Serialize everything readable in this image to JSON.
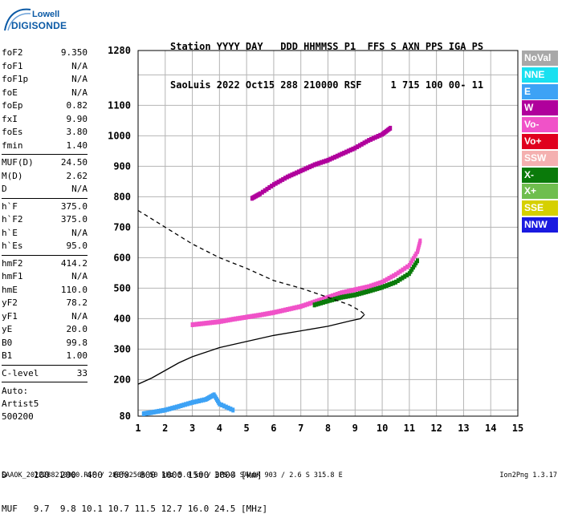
{
  "logo": {
    "line1": "Lowell",
    "line2": "DIGISONDE"
  },
  "header": {
    "row1": "Station YYYY DAY   DDD HHMMSS P1  FFS S AXN PPS IGA PS",
    "row2": "SaoLuis 2022 Oct15 288 210000 RSF     1 715 100 00- 11"
  },
  "params": [
    {
      "name": "foF2",
      "value": "9.350"
    },
    {
      "name": "foF1",
      "value": "N/A"
    },
    {
      "name": "foF1p",
      "value": "N/A"
    },
    {
      "name": "foE",
      "value": "N/A"
    },
    {
      "name": "foEp",
      "value": "0.82"
    },
    {
      "name": "fxI",
      "value": "9.90"
    },
    {
      "name": "foEs",
      "value": "3.80"
    },
    {
      "name": "fmin",
      "value": "1.40",
      "sep_after": true
    },
    {
      "name": "MUF(D)",
      "value": "24.50"
    },
    {
      "name": "M(D)",
      "value": "2.62"
    },
    {
      "name": "D",
      "value": "N/A",
      "sep_after": true
    },
    {
      "name": "h`F",
      "value": "375.0"
    },
    {
      "name": "h`F2",
      "value": "375.0"
    },
    {
      "name": "h`E",
      "value": "N/A"
    },
    {
      "name": "h`Es",
      "value": "95.0",
      "sep_after": true
    },
    {
      "name": "hmF2",
      "value": "414.2"
    },
    {
      "name": "hmF1",
      "value": "N/A"
    },
    {
      "name": "hmE",
      "value": "110.0"
    },
    {
      "name": "yF2",
      "value": "78.2"
    },
    {
      "name": "yF1",
      "value": "N/A"
    },
    {
      "name": "yE",
      "value": "20.0"
    },
    {
      "name": "B0",
      "value": "99.8"
    },
    {
      "name": "B1",
      "value": "1.00",
      "sep_after": true
    },
    {
      "name": "C-level",
      "value": "33",
      "sep_after": true
    }
  ],
  "auto": {
    "line1": "Auto:",
    "line2": "Artist5",
    "line3": "500200"
  },
  "legend": [
    {
      "label": "NoVal",
      "color": "#a8a8a8"
    },
    {
      "label": "NNE",
      "color": "#19e0f0"
    },
    {
      "label": "E",
      "color": "#3da2f5"
    },
    {
      "label": "W",
      "color": "#b0009c"
    },
    {
      "label": "Vo-",
      "color": "#f052c8"
    },
    {
      "label": "Vo+",
      "color": "#e0001e"
    },
    {
      "label": "SSW",
      "color": "#f4b0b0"
    },
    {
      "label": "X-",
      "color": "#0a7a0a"
    },
    {
      "label": "X+",
      "color": "#6fbe4e"
    },
    {
      "label": "SSE",
      "color": "#d6d000"
    },
    {
      "label": "NNW",
      "color": "#1a1ae0"
    }
  ],
  "footer": {
    "table_row1": "D     100  200  400  600  800 1000 1500 3000 [km]",
    "table_row2": "MUF   9.7  9.8 10.1 10.7 11.5 12.7 16.0 24.5 [MHz]",
    "line": "SAAOK_2022288210000.RSF / 280fx256h 50 kHz 5.0 km / DPS-4 SAAOK 903 / 2.6 S 315.8 E",
    "version": "Ion2Png 1.3.17"
  },
  "chart_data": {
    "type": "scatter",
    "x_range": [
      1,
      15
    ],
    "y_range": [
      80,
      1280
    ],
    "x_ticks": [
      "1",
      "2",
      "3",
      "4",
      "5",
      "6",
      "7",
      "8",
      "9",
      "10",
      "11",
      "12",
      "13",
      "14",
      "15"
    ],
    "y_ticks": [
      {
        "v": 80,
        "label": "80"
      },
      {
        "v": 100,
        "label": ""
      },
      {
        "v": 200,
        "label": "200"
      },
      {
        "v": 300,
        "label": "300"
      },
      {
        "v": 400,
        "label": "400"
      },
      {
        "v": 500,
        "label": "500"
      },
      {
        "v": 600,
        "label": "600"
      },
      {
        "v": 700,
        "label": "700"
      },
      {
        "v": 800,
        "label": "800"
      },
      {
        "v": 900,
        "label": "900"
      },
      {
        "v": 1000,
        "label": "1000"
      },
      {
        "v": 1100,
        "label": "1100"
      },
      {
        "v": 1200,
        "label": ""
      },
      {
        "v": 1280,
        "label": "1280"
      }
    ],
    "grid": true,
    "series": [
      {
        "name": "O-trace F",
        "color": "#f052c8",
        "points": [
          [
            3.0,
            380
          ],
          [
            3.5,
            385
          ],
          [
            4.0,
            390
          ],
          [
            4.5,
            398
          ],
          [
            5.0,
            405
          ],
          [
            5.5,
            412
          ],
          [
            6.0,
            420
          ],
          [
            6.5,
            430
          ],
          [
            7.0,
            440
          ],
          [
            7.5,
            455
          ],
          [
            8.0,
            470
          ],
          [
            8.5,
            485
          ],
          [
            9.0,
            495
          ],
          [
            9.5,
            505
          ],
          [
            10.0,
            520
          ],
          [
            10.5,
            545
          ],
          [
            11.0,
            575
          ],
          [
            11.3,
            620
          ],
          [
            11.4,
            655
          ]
        ]
      },
      {
        "name": "X-trace F",
        "color": "#0a7a0a",
        "points": [
          [
            7.5,
            445
          ],
          [
            8.0,
            458
          ],
          [
            8.5,
            470
          ],
          [
            9.0,
            478
          ],
          [
            9.5,
            490
          ],
          [
            10.0,
            503
          ],
          [
            10.5,
            520
          ],
          [
            11.0,
            548
          ],
          [
            11.3,
            590
          ]
        ]
      },
      {
        "name": "multi-hop",
        "color": "#b0009c",
        "points": [
          [
            5.2,
            795
          ],
          [
            5.5,
            810
          ],
          [
            6.0,
            840
          ],
          [
            6.5,
            865
          ],
          [
            7.0,
            885
          ],
          [
            7.5,
            905
          ],
          [
            8.0,
            920
          ],
          [
            8.5,
            940
          ],
          [
            9.0,
            960
          ],
          [
            9.5,
            985
          ],
          [
            10.0,
            1005
          ],
          [
            10.3,
            1025
          ]
        ]
      },
      {
        "name": "Es",
        "color": "#3da2f5",
        "points": [
          [
            1.2,
            88
          ],
          [
            1.5,
            92
          ],
          [
            2.0,
            100
          ],
          [
            2.5,
            112
          ],
          [
            3.0,
            125
          ],
          [
            3.5,
            135
          ],
          [
            3.8,
            150
          ],
          [
            4.0,
            120
          ],
          [
            4.5,
            100
          ]
        ]
      }
    ],
    "profile_solid": [
      [
        1.0,
        185
      ],
      [
        1.5,
        205
      ],
      [
        2.0,
        230
      ],
      [
        2.5,
        255
      ],
      [
        3.0,
        275
      ],
      [
        4.0,
        305
      ],
      [
        5.0,
        325
      ],
      [
        6.0,
        345
      ],
      [
        7.0,
        360
      ],
      [
        8.0,
        375
      ],
      [
        8.8,
        392
      ],
      [
        9.2,
        400
      ],
      [
        9.35,
        414
      ]
    ],
    "profile_dashed": [
      [
        1.0,
        755
      ],
      [
        2.0,
        700
      ],
      [
        3.0,
        645
      ],
      [
        4.0,
        600
      ],
      [
        5.0,
        565
      ],
      [
        6.0,
        525
      ],
      [
        7.0,
        500
      ],
      [
        8.0,
        470
      ],
      [
        8.8,
        445
      ],
      [
        9.2,
        425
      ],
      [
        9.35,
        414
      ]
    ]
  }
}
